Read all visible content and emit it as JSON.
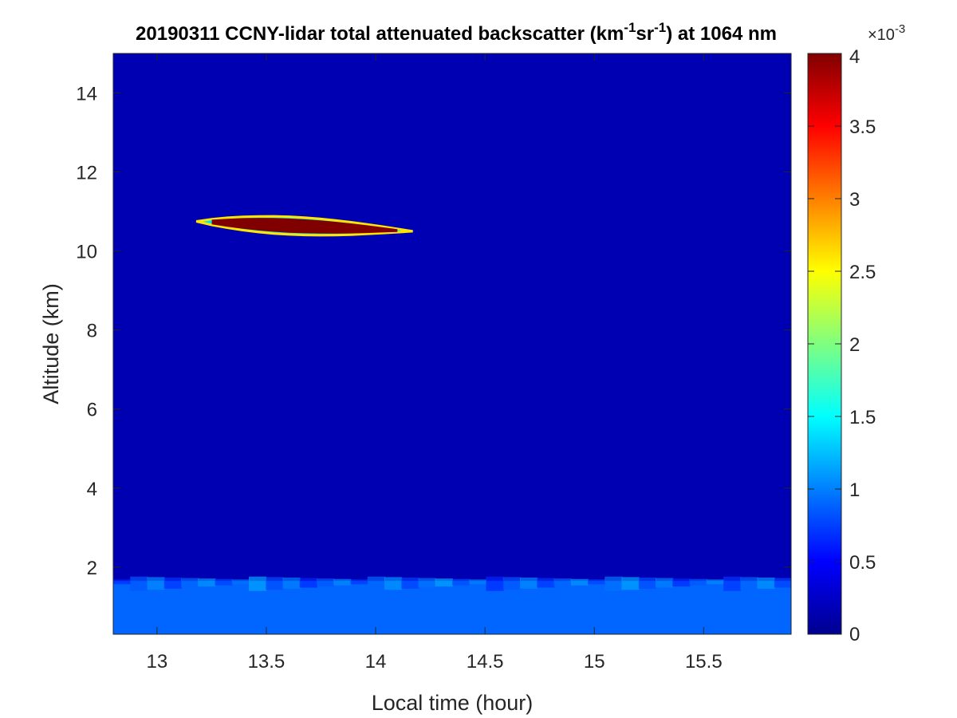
{
  "chart_data": {
    "type": "heatmap",
    "title": {
      "part1": "20190311 CCNY-lidar total attenuated backscatter (km",
      "sup1": "-1",
      "part2": "sr",
      "sup2": "-1",
      "part3": ") at 1064 nm"
    },
    "xlabel": "Local time (hour)",
    "ylabel": "Altitude (km)",
    "xlim": [
      12.8,
      15.9
    ],
    "ylim": [
      0.3,
      15.0
    ],
    "xticks": [
      13,
      13.5,
      14,
      14.5,
      15,
      15.5
    ],
    "xtick_labels": [
      "13",
      "13.5",
      "14",
      "14.5",
      "15",
      "15.5"
    ],
    "yticks": [
      2,
      4,
      6,
      8,
      10,
      12,
      14
    ],
    "ytick_labels": [
      "2",
      "4",
      "6",
      "8",
      "10",
      "12",
      "14"
    ],
    "colorbar": {
      "colormap": "jet",
      "clim": [
        0,
        0.004
      ],
      "ticks": [
        0,
        0.5,
        1,
        1.5,
        2,
        2.5,
        3,
        3.5,
        4
      ],
      "tick_labels": [
        "0",
        "0.5",
        "1",
        "1.5",
        "2",
        "2.5",
        "3",
        "3.5",
        "4"
      ],
      "exponent_label": "×10",
      "exponent_power": "-3"
    },
    "background_value_scaled": 0.2,
    "cirrus_layer": {
      "time_start": 13.18,
      "time_end": 14.17,
      "altitude_at_start": 10.75,
      "altitude_at_end": 10.5,
      "max_thickness_km": 0.45,
      "peak_value_scaled": 4.0
    },
    "boundary_layer": {
      "top_altitude": 1.65,
      "value_scaled": 0.9
    },
    "grid": false
  }
}
